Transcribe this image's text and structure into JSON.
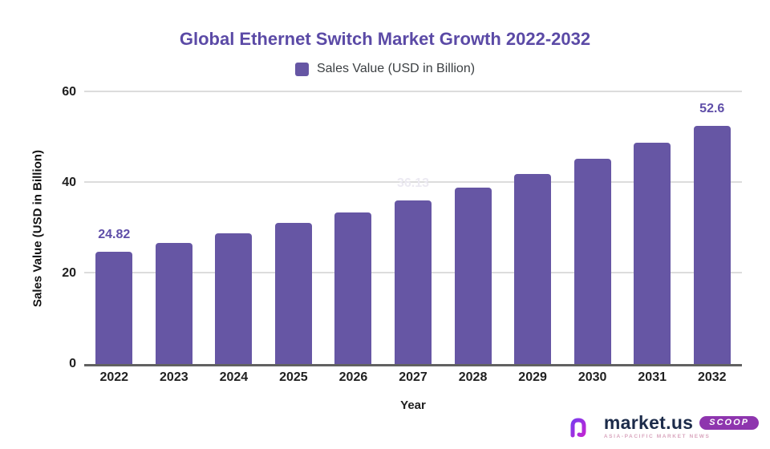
{
  "title": "Global Ethernet Switch Market Growth 2022-2032",
  "legend": {
    "label": "Sales Value (USD in Billion)",
    "swatch_color": "#6656A4"
  },
  "chart_data": {
    "type": "bar",
    "categories": [
      "2022",
      "2023",
      "2024",
      "2025",
      "2026",
      "2027",
      "2028",
      "2029",
      "2030",
      "2031",
      "2032"
    ],
    "values": [
      24.82,
      26.76,
      28.84,
      31.09,
      33.52,
      36.13,
      38.95,
      41.99,
      45.26,
      48.79,
      52.6
    ],
    "title": "Global Ethernet Switch Market Growth 2022-2032",
    "xlabel": "Year",
    "ylabel": "Sales Value (USD in Billion)",
    "ylim": [
      0,
      60
    ],
    "yticks": [
      0,
      20,
      40,
      60
    ],
    "grid": "horizontal-light",
    "legend_position": "top",
    "bar_color": "#6656A4",
    "data_labels": [
      {
        "category": "2022",
        "text": "24.82",
        "style": "prominent"
      },
      {
        "category": "2027",
        "text": "36.13",
        "style": "faint"
      },
      {
        "category": "2032",
        "text": "52.6",
        "style": "prominent"
      }
    ]
  },
  "branding": {
    "icon": "market-us-squiggle-icon",
    "name": "market.us",
    "tagline": "ASIA-PACIFIC MARKET NEWS",
    "badge": "SCOOP"
  },
  "colors": {
    "title": "#5B4AA6",
    "bar": "#6656A4",
    "data_label": "#5F4EA8",
    "faint_label": "#ECEAF2",
    "grid": "#DCDCDC",
    "axis_baseline": "#616161",
    "badge_bg": "#8E35AE",
    "brand_text": "#1C2B4A"
  }
}
